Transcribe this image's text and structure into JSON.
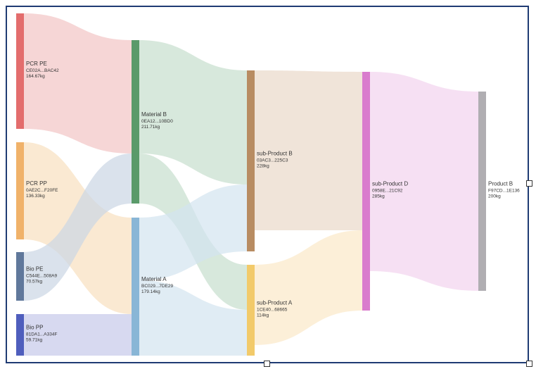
{
  "sankey": {
    "nodes": [
      {
        "id": "pcr_pe",
        "name": "PCR PE",
        "code": "CE02A...BAC42",
        "weight": "164.67kg",
        "color": "#e36d6d"
      },
      {
        "id": "pcr_pp",
        "name": "PCR PP",
        "code": "0AE2C...F20FE",
        "weight": "136.33kg",
        "color": "#f0b26a"
      },
      {
        "id": "bio_pe",
        "name": "Bio PE",
        "code": "C544E...508A9",
        "weight": "70.57kg",
        "color": "#60789b"
      },
      {
        "id": "bio_pp",
        "name": "Bio PP",
        "code": "81DA1...A334F",
        "weight": "59.71kg",
        "color": "#4f5ebd"
      },
      {
        "id": "mat_b",
        "name": "Material B",
        "code": "0EA12...10BD0",
        "weight": "211.71kg",
        "color": "#5a9a6a"
      },
      {
        "id": "mat_a",
        "name": "Material A",
        "code": "BC029...7DE29",
        "weight": "179.14kg",
        "color": "#89b6d6"
      },
      {
        "id": "sub_b",
        "name": "sub-Product B",
        "code": "03AC3...225C3",
        "weight": "228kg",
        "color": "#b88c62"
      },
      {
        "id": "sub_a",
        "name": "sub-Product A",
        "code": "1CE40...68665",
        "weight": "114kg",
        "color": "#f2ca6a"
      },
      {
        "id": "sub_d",
        "name": "sub-Product D",
        "code": "0958E...21C92",
        "weight": "285kg",
        "color": "#d97ccd"
      },
      {
        "id": "prod_b",
        "name": "Product B",
        "code": "F97CD...1E136",
        "weight": "200kg",
        "color": "#b0aeb2"
      }
    ],
    "links": [
      {
        "source": "pcr_pe",
        "target": "mat_b",
        "color": "#f2c4c4"
      },
      {
        "source": "pcr_pp",
        "target": "mat_a",
        "color": "#f8dfbf"
      },
      {
        "source": "bio_pe",
        "target": "mat_b",
        "color": "#cbd6e4"
      },
      {
        "source": "bio_pp",
        "target": "mat_a",
        "color": "#c6c9e9"
      },
      {
        "source": "mat_b",
        "target": "sub_b",
        "color": "#c6decd"
      },
      {
        "source": "mat_b",
        "target": "sub_a",
        "color": "#c6decd"
      },
      {
        "source": "mat_a",
        "target": "sub_b",
        "color": "#d3e4f0"
      },
      {
        "source": "mat_a",
        "target": "sub_a",
        "color": "#d3e4f0"
      },
      {
        "source": "sub_b",
        "target": "sub_d",
        "color": "#ead9c9"
      },
      {
        "source": "sub_a",
        "target": "sub_d",
        "color": "#fbe8c8"
      },
      {
        "source": "sub_d",
        "target": "prod_b",
        "color": "#f2d3ee"
      }
    ]
  }
}
